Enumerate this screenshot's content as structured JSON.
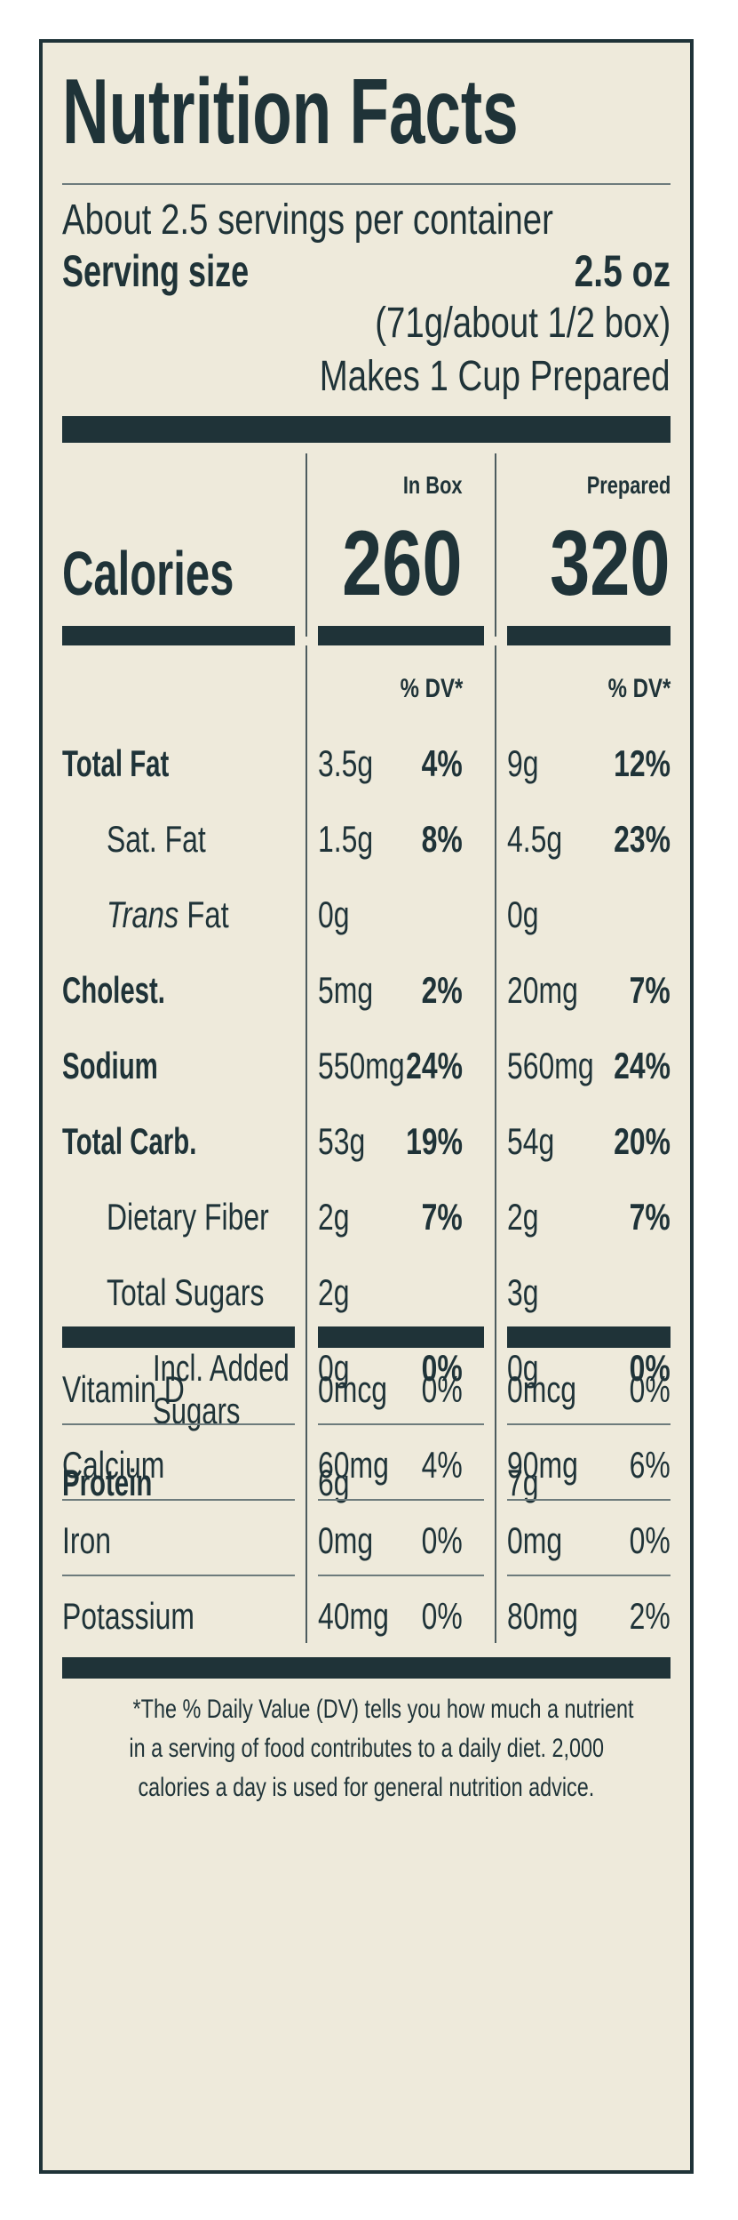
{
  "title": "Nutrition Facts",
  "servings_per_container": "About 2.5 servings per container",
  "serving_size_label": "Serving size",
  "serving_size_value": "2.5 oz",
  "serving_size_detail": "(71g/about 1/2 box)",
  "makes": "Makes 1 Cup Prepared",
  "columns": {
    "in_box": "In Box",
    "prepared": "Prepared"
  },
  "calories": {
    "label": "Calories",
    "in_box": "260",
    "prepared": "320"
  },
  "dv_header": "% DV*",
  "nutrients": [
    {
      "name": "Total Fat",
      "box_amt": "3.5g",
      "box_dv": "4%",
      "prep_amt": "9g",
      "prep_dv": "12%"
    },
    {
      "name": "Sat. Fat",
      "box_amt": "1.5g",
      "box_dv": "8%",
      "prep_amt": "4.5g",
      "prep_dv": "23%"
    },
    {
      "name_italic": "Trans",
      "name_rest": " Fat",
      "box_amt": "0g",
      "box_dv": "",
      "prep_amt": "0g",
      "prep_dv": ""
    },
    {
      "name": "Cholest.",
      "box_amt": "5mg",
      "box_dv": "2%",
      "prep_amt": "20mg",
      "prep_dv": "7%"
    },
    {
      "name": "Sodium",
      "box_amt": "550mg",
      "box_dv": "24%",
      "prep_amt": "560mg",
      "prep_dv": "24%"
    },
    {
      "name": "Total Carb.",
      "box_amt": "53g",
      "box_dv": "19%",
      "prep_amt": "54g",
      "prep_dv": "20%"
    },
    {
      "name": "Dietary Fiber",
      "box_amt": "2g",
      "box_dv": "7%",
      "prep_amt": "2g",
      "prep_dv": "7%"
    },
    {
      "name": "Total Sugars",
      "box_amt": "2g",
      "box_dv": "",
      "prep_amt": "3g",
      "prep_dv": ""
    },
    {
      "name_line1": "Incl. Added",
      "name_line2": "Sugars",
      "box_amt": "0g",
      "box_dv": "0%",
      "prep_amt": "0g",
      "prep_dv": "0%"
    },
    {
      "name": "Protein",
      "box_amt": "6g",
      "box_dv": "",
      "prep_amt": "7g",
      "prep_dv": ""
    }
  ],
  "vitamins": [
    {
      "name": "Vitamin D",
      "box_amt": "0mcg",
      "box_dv": "0%",
      "prep_amt": "0mcg",
      "prep_dv": "0%"
    },
    {
      "name": "Calcium",
      "box_amt": "60mg",
      "box_dv": "4%",
      "prep_amt": "90mg",
      "prep_dv": "6%"
    },
    {
      "name": "Iron",
      "box_amt": "0mg",
      "box_dv": "0%",
      "prep_amt": "0mg",
      "prep_dv": "0%"
    },
    {
      "name": "Potassium",
      "box_amt": "40mg",
      "box_dv": "0%",
      "prep_amt": "80mg",
      "prep_dv": "2%"
    }
  ],
  "footnote": [
    "*The % Daily Value (DV) tells you how much a nutrient",
    "in a serving of food contributes to a daily diet. 2,000",
    "calories a day is used for general nutrition advice."
  ],
  "colors": {
    "ink": "#1f3338",
    "paper": "#eeeadb"
  }
}
